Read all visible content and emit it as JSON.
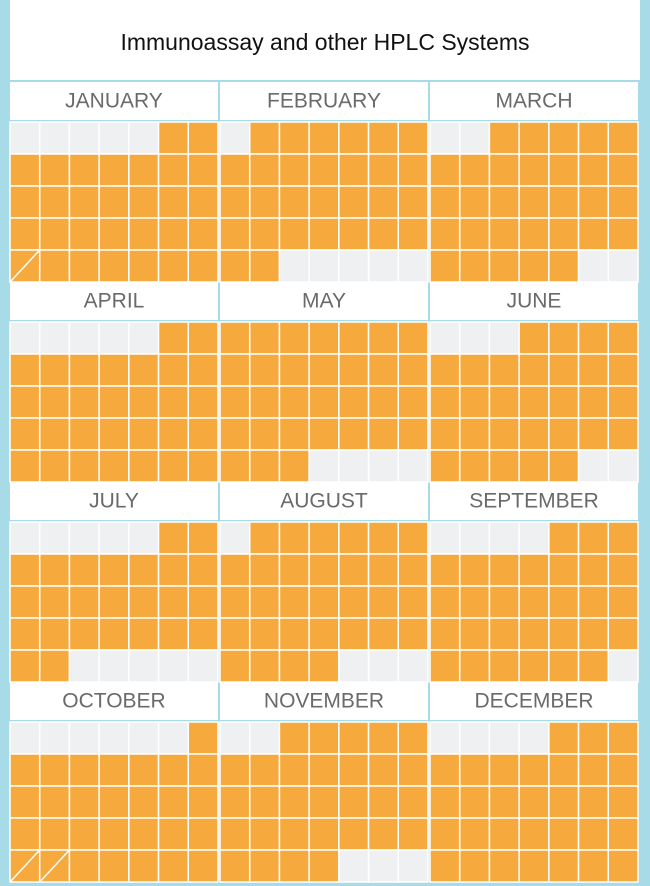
{
  "header": {
    "title": "Immunoassay and other HPLC Systems"
  },
  "months": [
    {
      "name": "JANUARY",
      "leading_empty": 5,
      "trailing_empty": 0,
      "split_cells": 1
    },
    {
      "name": "FEBRUARY",
      "leading_empty": 1,
      "trailing_empty": 5,
      "split_cells": 0
    },
    {
      "name": "MARCH",
      "leading_empty": 2,
      "trailing_empty": 2,
      "split_cells": 0
    },
    {
      "name": "APRIL",
      "leading_empty": 5,
      "trailing_empty": 0,
      "split_cells": 0
    },
    {
      "name": "MAY",
      "leading_empty": 0,
      "trailing_empty": 4,
      "split_cells": 0
    },
    {
      "name": "JUNE",
      "leading_empty": 3,
      "trailing_empty": 2,
      "split_cells": 0
    },
    {
      "name": "JULY",
      "leading_empty": 5,
      "trailing_empty": 5,
      "split_cells": 0
    },
    {
      "name": "AUGUST",
      "leading_empty": 1,
      "trailing_empty": 3,
      "split_cells": 0
    },
    {
      "name": "SEPTEMBER",
      "leading_empty": 4,
      "trailing_empty": 1,
      "split_cells": 0
    },
    {
      "name": "OCTOBER",
      "leading_empty": 6,
      "trailing_empty": 0,
      "split_cells": 2
    },
    {
      "name": "NOVEMBER",
      "leading_empty": 2,
      "trailing_empty": 3,
      "split_cells": 0
    },
    {
      "name": "DECEMBER",
      "leading_empty": 4,
      "trailing_empty": 0,
      "split_cells": 0
    }
  ]
}
